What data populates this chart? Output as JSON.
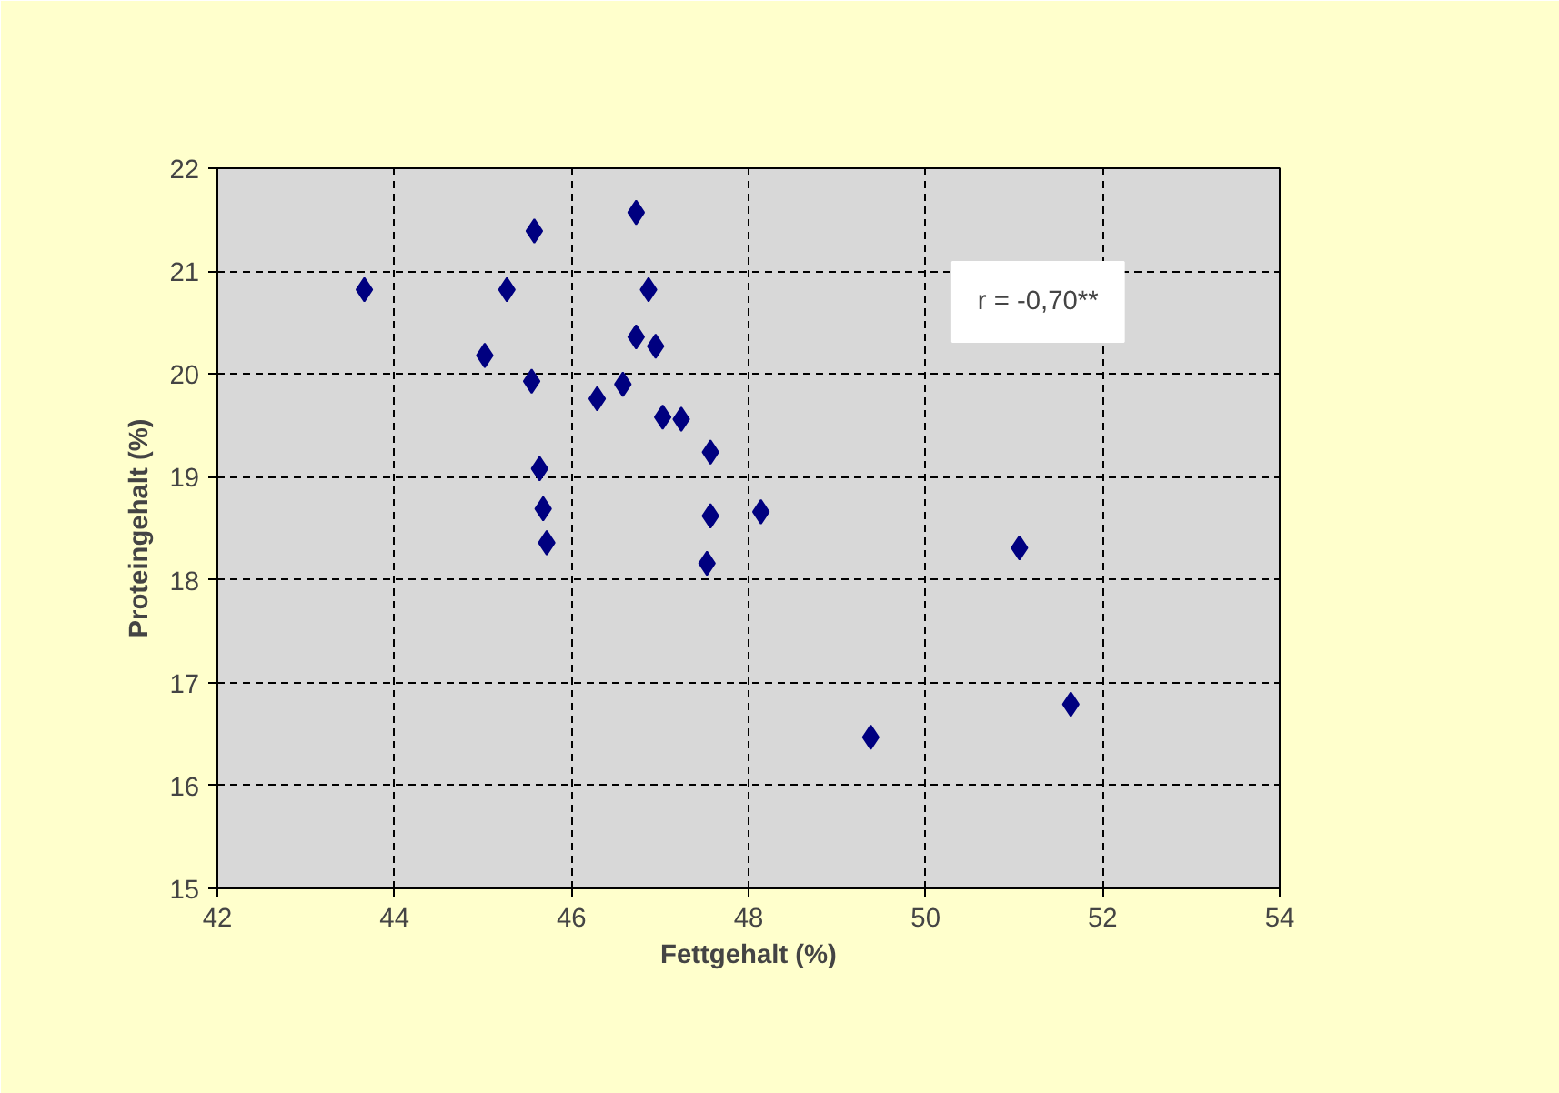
{
  "chart_data": {
    "type": "scatter",
    "xlabel": "Fettgehalt (%)",
    "ylabel": "Proteingehalt (%)",
    "annotations": [
      "r = -0,70**"
    ],
    "x": [
      43.66,
      45.58,
      46.73,
      45.27,
      46.87,
      45.02,
      45.55,
      46.73,
      46.95,
      46.29,
      46.58,
      47.03,
      47.24,
      47.57,
      45.64,
      45.68,
      45.72,
      47.57,
      48.14,
      47.53,
      51.06,
      49.38,
      51.64
    ],
    "series": [
      {
        "color": "#000080",
        "values": [
          20.82,
          21.39,
          21.57,
          20.82,
          20.82,
          20.18,
          19.93,
          20.36,
          20.27,
          19.76,
          19.9,
          19.58,
          19.56,
          19.24,
          19.08,
          18.69,
          18.36,
          18.62,
          18.66,
          18.16,
          18.31,
          16.47,
          16.79
        ]
      }
    ],
    "xlim": [
      42,
      54
    ],
    "xticks": [
      42,
      44,
      46,
      48,
      50,
      52,
      54
    ],
    "ylim": [
      15,
      22
    ],
    "yticks": [
      15,
      16,
      17,
      18,
      19,
      20,
      21,
      22
    ],
    "grid": true,
    "marker": "diamond"
  }
}
